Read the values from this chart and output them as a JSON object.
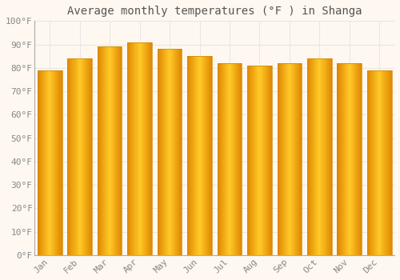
{
  "title": "Average monthly temperatures (°F ) in Shanga",
  "months": [
    "Jan",
    "Feb",
    "Mar",
    "Apr",
    "May",
    "Jun",
    "Jul",
    "Aug",
    "Sep",
    "Oct",
    "Nov",
    "Dec"
  ],
  "values": [
    79,
    84,
    89,
    91,
    88,
    85,
    82,
    81,
    82,
    84,
    82,
    79
  ],
  "bar_color_main": "#F5A500",
  "bar_color_light": "#FFCA28",
  "bar_color_dark": "#E08800",
  "ylim": [
    0,
    100
  ],
  "ytick_step": 10,
  "background_color": "#FFF8F0",
  "plot_bg_color": "#FFF8F0",
  "grid_color": "#E8E8E8",
  "title_fontsize": 10,
  "tick_fontsize": 8,
  "font_family": "monospace",
  "title_color": "#555555",
  "tick_color": "#888888"
}
